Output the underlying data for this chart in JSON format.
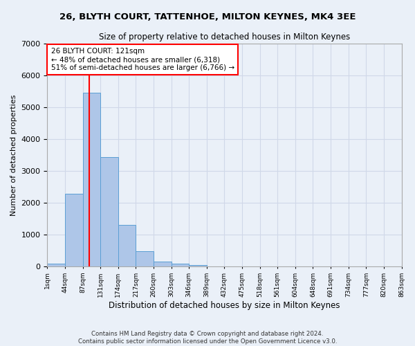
{
  "title": "26, BLYTH COURT, TATTENHOE, MILTON KEYNES, MK4 3EE",
  "subtitle": "Size of property relative to detached houses in Milton Keynes",
  "xlabel": "Distribution of detached houses by size in Milton Keynes",
  "ylabel": "Number of detached properties",
  "footer_line1": "Contains HM Land Registry data © Crown copyright and database right 2024.",
  "footer_line2": "Contains public sector information licensed under the Open Government Licence v3.0.",
  "bar_values": [
    75,
    2280,
    5460,
    3440,
    1310,
    470,
    150,
    80,
    45,
    0,
    0,
    0,
    0,
    0,
    0,
    0,
    0,
    0,
    0,
    0
  ],
  "bin_labels": [
    "1sqm",
    "44sqm",
    "87sqm",
    "131sqm",
    "174sqm",
    "217sqm",
    "260sqm",
    "303sqm",
    "346sqm",
    "389sqm",
    "432sqm",
    "475sqm",
    "518sqm",
    "561sqm",
    "604sqm",
    "648sqm",
    "691sqm",
    "734sqm",
    "777sqm",
    "820sqm",
    "863sqm"
  ],
  "bar_color": "#aec6e8",
  "bar_edge_color": "#5a9fd4",
  "grid_color": "#d0d8e8",
  "background_color": "#eaf0f8",
  "vline_color": "red",
  "vline_pos": 2.35,
  "annotation_text": "26 BLYTH COURT: 121sqm\n← 48% of detached houses are smaller (6,318)\n51% of semi-detached houses are larger (6,766) →",
  "annotation_box_color": "white",
  "annotation_box_edge": "red",
  "ylim": [
    0,
    7000
  ],
  "yticks": [
    0,
    1000,
    2000,
    3000,
    4000,
    5000,
    6000,
    7000
  ]
}
